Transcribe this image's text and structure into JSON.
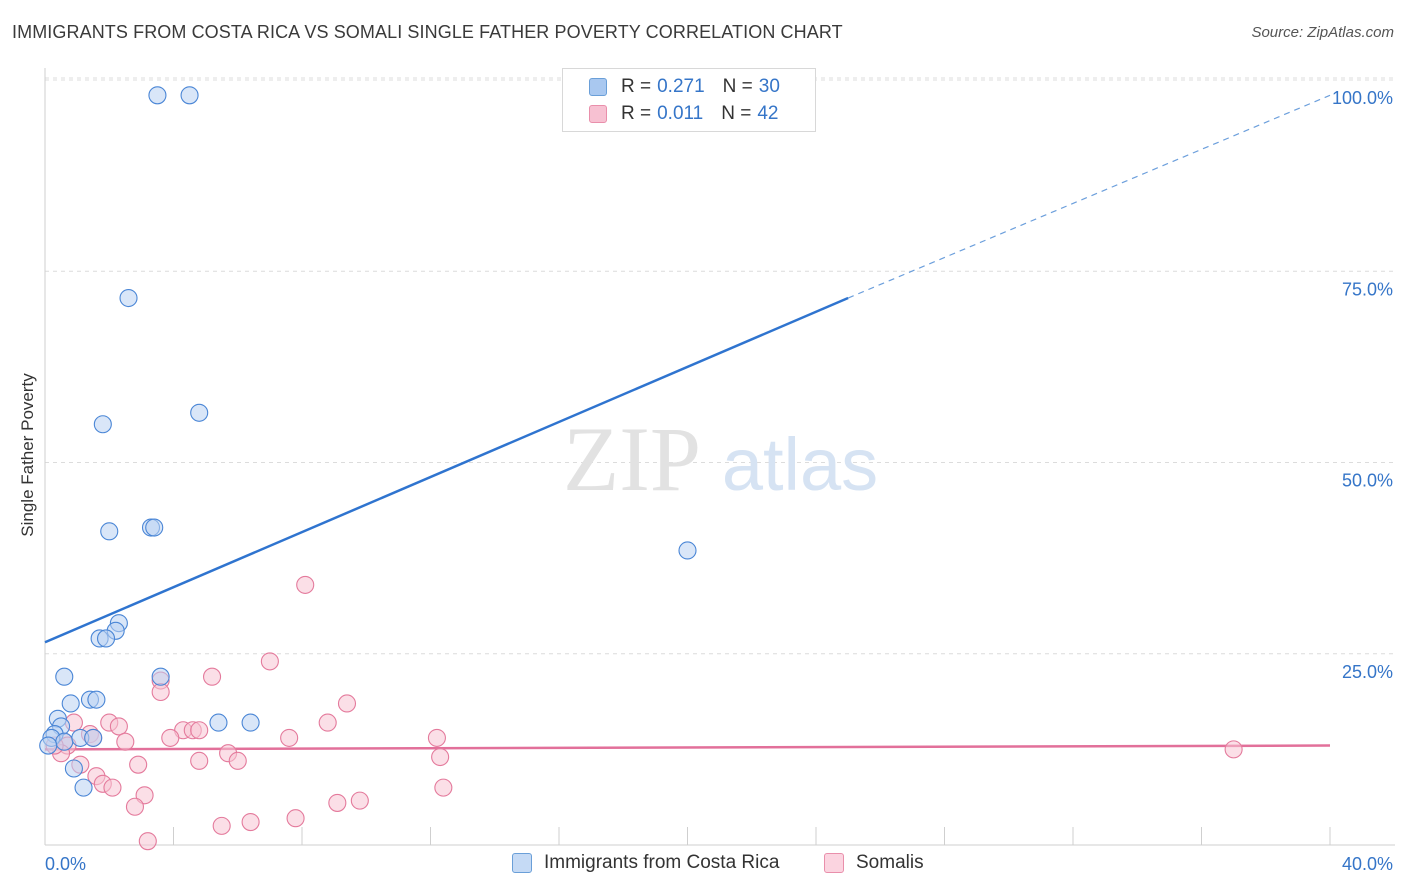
{
  "title": "IMMIGRANTS FROM COSTA RICA VS SOMALI SINGLE FATHER POVERTY CORRELATION CHART",
  "source": "Source: ZipAtlas.com",
  "watermark": {
    "zip": "ZIP",
    "atlas": "atlas"
  },
  "stats_legend": [
    {
      "r_label": "R =",
      "r_value": "0.271",
      "n_label": "N =",
      "n_value": "30",
      "color": "#a9c8f0",
      "border": "#6a9fd8"
    },
    {
      "r_label": "R =",
      "r_value": "0.011",
      "n_label": "N =",
      "n_value": "42",
      "color": "#f7c1d2",
      "border": "#e98fab"
    }
  ],
  "bottom_legend": [
    {
      "label": "Immigrants from Costa Rica",
      "color": "#c5daf5",
      "border": "#6a9fd8"
    },
    {
      "label": "Somalis",
      "color": "#fbd4e0",
      "border": "#e98fab"
    }
  ],
  "chart_data": {
    "type": "scatter",
    "title": "IMMIGRANTS FROM COSTA RICA VS SOMALI SINGLE FATHER POVERTY CORRELATION CHART",
    "xlabel": "",
    "ylabel": "Single Father Poverty",
    "xlim": [
      0,
      40
    ],
    "ylim": [
      0,
      100
    ],
    "x_tick_labels": [
      "0.0%",
      "40.0%"
    ],
    "y_tick_labels": [
      {
        "value": 100,
        "label": "100.0%"
      },
      {
        "value": 75,
        "label": "75.0%"
      },
      {
        "value": 50,
        "label": "50.0%"
      },
      {
        "value": 25,
        "label": "25.0%"
      }
    ],
    "grid": true,
    "series": [
      {
        "name": "Immigrants from Costa Rica",
        "color": "#4a86d6",
        "fill": "#b9d2f2",
        "points": [
          [
            3.5,
            98.0
          ],
          [
            4.5,
            98.0
          ],
          [
            2.6,
            71.5
          ],
          [
            1.8,
            55.0
          ],
          [
            4.8,
            56.5
          ],
          [
            2.0,
            41.0
          ],
          [
            3.3,
            41.5
          ],
          [
            3.4,
            41.5
          ],
          [
            20.0,
            38.5
          ],
          [
            2.3,
            29.0
          ],
          [
            2.2,
            28.0
          ],
          [
            1.7,
            27.0
          ],
          [
            1.9,
            27.0
          ],
          [
            0.6,
            22.0
          ],
          [
            3.6,
            22.0
          ],
          [
            1.4,
            19.0
          ],
          [
            1.6,
            19.0
          ],
          [
            0.8,
            18.5
          ],
          [
            5.4,
            16.0
          ],
          [
            6.4,
            16.0
          ],
          [
            0.4,
            16.5
          ],
          [
            0.5,
            15.5
          ],
          [
            0.3,
            14.5
          ],
          [
            0.2,
            14.0
          ],
          [
            0.6,
            13.5
          ],
          [
            1.1,
            14.0
          ],
          [
            1.5,
            14.0
          ],
          [
            0.1,
            13.0
          ],
          [
            0.9,
            10.0
          ],
          [
            1.2,
            7.5
          ]
        ],
        "trend": {
          "x_start": 0,
          "y_start": 26.5,
          "x_end_solid": 25,
          "y_end_solid": 71.5,
          "x_end": 40,
          "y_end": 98.0
        }
      },
      {
        "name": "Somalis",
        "color": "#e47a9c",
        "fill": "#f7c4d4",
        "points": [
          [
            8.1,
            34.0
          ],
          [
            7.0,
            24.0
          ],
          [
            5.2,
            22.0
          ],
          [
            3.6,
            21.5
          ],
          [
            3.6,
            20.0
          ],
          [
            9.4,
            18.5
          ],
          [
            0.9,
            16.0
          ],
          [
            2.0,
            16.0
          ],
          [
            2.3,
            15.5
          ],
          [
            8.8,
            16.0
          ],
          [
            4.3,
            15.0
          ],
          [
            4.6,
            15.0
          ],
          [
            4.8,
            15.0
          ],
          [
            3.9,
            14.0
          ],
          [
            1.4,
            14.5
          ],
          [
            1.5,
            14.0
          ],
          [
            0.6,
            13.5
          ],
          [
            0.7,
            13.0
          ],
          [
            2.5,
            13.5
          ],
          [
            7.6,
            14.0
          ],
          [
            12.2,
            14.0
          ],
          [
            5.7,
            12.0
          ],
          [
            0.5,
            12.0
          ],
          [
            1.1,
            10.5
          ],
          [
            4.8,
            11.0
          ],
          [
            6.0,
            11.0
          ],
          [
            2.9,
            10.5
          ],
          [
            12.3,
            11.5
          ],
          [
            1.6,
            9.0
          ],
          [
            1.8,
            8.0
          ],
          [
            2.1,
            7.5
          ],
          [
            12.4,
            7.5
          ],
          [
            3.1,
            6.5
          ],
          [
            2.8,
            5.0
          ],
          [
            9.1,
            5.5
          ],
          [
            9.8,
            5.8
          ],
          [
            7.8,
            3.5
          ],
          [
            6.4,
            3.0
          ],
          [
            5.5,
            2.5
          ],
          [
            3.2,
            0.5
          ],
          [
            37.0,
            12.5
          ],
          [
            0.3,
            13.0
          ]
        ],
        "trend": {
          "x_start": 0,
          "y_start": 12.5,
          "x_end": 40,
          "y_end": 13.0
        }
      }
    ]
  }
}
